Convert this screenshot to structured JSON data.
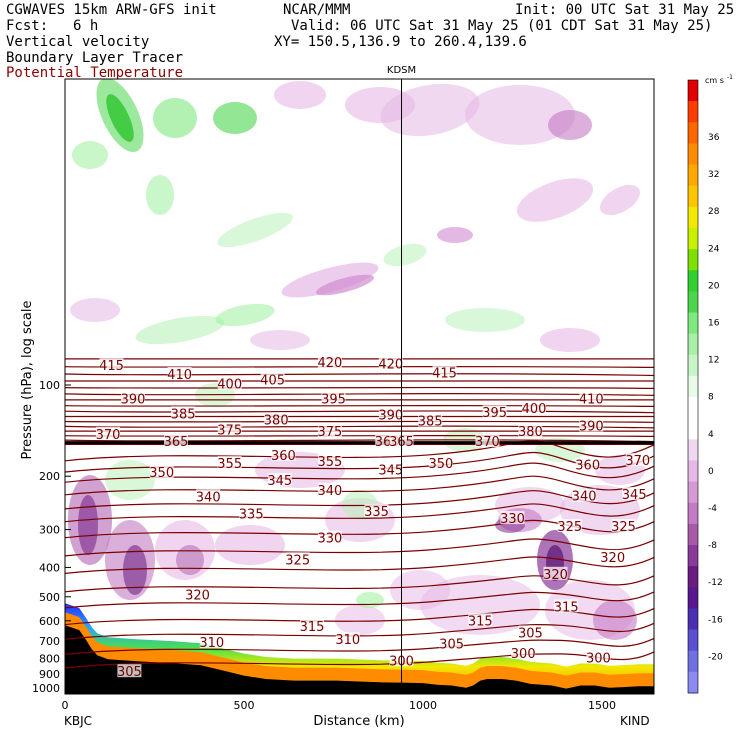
{
  "header": {
    "model": "CGWAVES 15km ARW-GFS init",
    "org": "NCAR/MMM",
    "init": "Init: 00 UTC Sat 31 May 25",
    "fcst_label": "Fcst:",
    "fcst_value": "6 h",
    "valid": "Valid: 06 UTC Sat 31 May 25 (01 CDT Sat 31 May 25)",
    "xy": "XY= 150.5,136.9 to 260.4,139.6",
    "field1": "Vertical velocity",
    "field2": "Boundary Layer Tracer",
    "field3": "Potential Temperature"
  },
  "colors": {
    "theta_line": "#7a0000",
    "field3_text": "#8b0000",
    "terrain": "#ff8c00",
    "tropopause": "#000000"
  },
  "marker_label": "KDSM",
  "axis": {
    "ylabel": "Pressure (hPa), log scale",
    "xlabel": "Distance (km)",
    "left_station": "KBJC",
    "right_station": "KIND"
  },
  "chart_data": {
    "type": "cross-section",
    "x_ticks": [
      0,
      500,
      1000,
      1500
    ],
    "xlim": [
      0,
      1650
    ],
    "y_ticks": [
      100,
      200,
      300,
      400,
      500,
      600,
      700,
      800,
      900,
      1000
    ],
    "y_scale": "log",
    "marker_km": 940,
    "theta_labels": [
      {
        "label": "415",
        "x": 130,
        "p": 86
      },
      {
        "label": "420",
        "x": 740,
        "p": 84
      },
      {
        "label": "420",
        "x": 910,
        "p": 85
      },
      {
        "label": "415",
        "x": 1060,
        "p": 91
      },
      {
        "label": "410",
        "x": 320,
        "p": 92
      },
      {
        "label": "405",
        "x": 580,
        "p": 96
      },
      {
        "label": "400",
        "x": 460,
        "p": 99
      },
      {
        "label": "390",
        "x": 190,
        "p": 111
      },
      {
        "label": "395",
        "x": 750,
        "p": 111
      },
      {
        "label": "400",
        "x": 1310,
        "p": 119
      },
      {
        "label": "410",
        "x": 1470,
        "p": 111
      },
      {
        "label": "385",
        "x": 330,
        "p": 124
      },
      {
        "label": "390",
        "x": 910,
        "p": 125
      },
      {
        "label": "395",
        "x": 1200,
        "p": 123
      },
      {
        "label": "380",
        "x": 590,
        "p": 130
      },
      {
        "label": "385",
        "x": 1020,
        "p": 131
      },
      {
        "label": "390",
        "x": 1470,
        "p": 136
      },
      {
        "label": "375",
        "x": 460,
        "p": 140
      },
      {
        "label": "375",
        "x": 740,
        "p": 142
      },
      {
        "label": "380",
        "x": 1300,
        "p": 142
      },
      {
        "label": "370",
        "x": 120,
        "p": 145
      },
      {
        "label": "365",
        "x": 310,
        "p": 153
      },
      {
        "label": "360",
        "x": 900,
        "p": 153
      },
      {
        "label": "365",
        "x": 940,
        "p": 153
      },
      {
        "label": "370",
        "x": 1180,
        "p": 153
      },
      {
        "label": "360",
        "x": 610,
        "p": 170
      },
      {
        "label": "355",
        "x": 460,
        "p": 181
      },
      {
        "label": "355",
        "x": 740,
        "p": 178
      },
      {
        "label": "345",
        "x": 910,
        "p": 190
      },
      {
        "label": "350",
        "x": 1050,
        "p": 181
      },
      {
        "label": "360",
        "x": 1460,
        "p": 183
      },
      {
        "label": "370",
        "x": 1600,
        "p": 177
      },
      {
        "label": "350",
        "x": 270,
        "p": 194
      },
      {
        "label": "345",
        "x": 600,
        "p": 206
      },
      {
        "label": "340",
        "x": 740,
        "p": 222
      },
      {
        "label": "340",
        "x": 400,
        "p": 233
      },
      {
        "label": "340",
        "x": 1450,
        "p": 232
      },
      {
        "label": "345",
        "x": 1590,
        "p": 229
      },
      {
        "label": "335",
        "x": 520,
        "p": 266
      },
      {
        "label": "335",
        "x": 870,
        "p": 261
      },
      {
        "label": "330",
        "x": 740,
        "p": 319
      },
      {
        "label": "330",
        "x": 1250,
        "p": 275
      },
      {
        "label": "325",
        "x": 1410,
        "p": 292
      },
      {
        "label": "325",
        "x": 1560,
        "p": 292
      },
      {
        "label": "325",
        "x": 650,
        "p": 376
      },
      {
        "label": "320",
        "x": 1530,
        "p": 369
      },
      {
        "label": "320",
        "x": 1370,
        "p": 420
      },
      {
        "label": "320",
        "x": 370,
        "p": 492
      },
      {
        "label": "315",
        "x": 1400,
        "p": 538
      },
      {
        "label": "315",
        "x": 1160,
        "p": 598
      },
      {
        "label": "315",
        "x": 690,
        "p": 624
      },
      {
        "label": "310",
        "x": 790,
        "p": 690
      },
      {
        "label": "310",
        "x": 410,
        "p": 705
      },
      {
        "label": "305",
        "x": 1300,
        "p": 656
      },
      {
        "label": "305",
        "x": 1080,
        "p": 713
      },
      {
        "label": "300",
        "x": 1280,
        "p": 766
      },
      {
        "label": "300",
        "x": 1490,
        "p": 794
      },
      {
        "label": "300",
        "x": 940,
        "p": 810
      },
      {
        "label": "305",
        "x": 180,
        "p": 880
      }
    ]
  }
}
